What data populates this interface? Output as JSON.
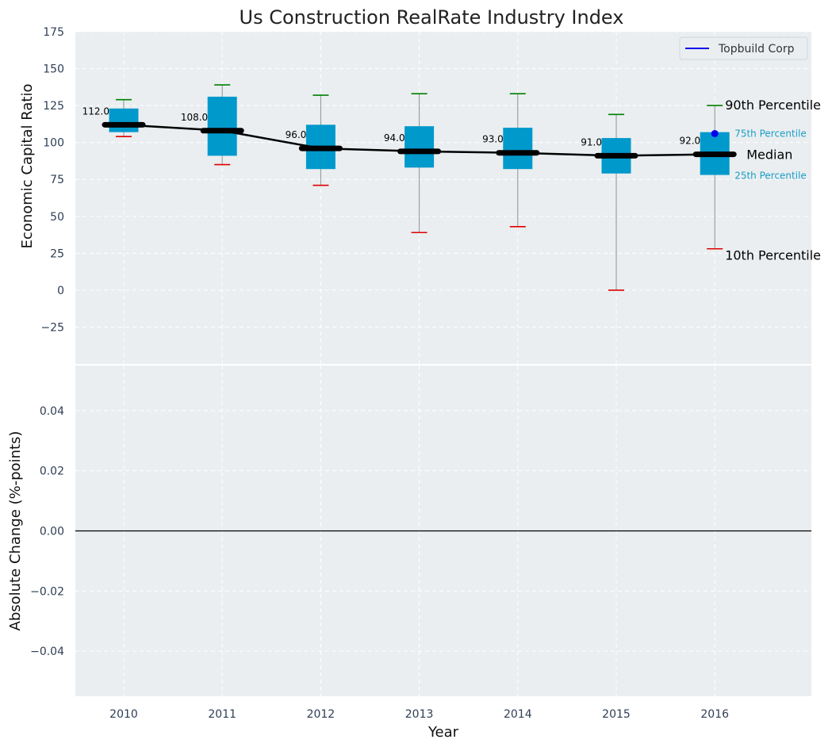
{
  "chart_data": [
    {
      "type": "box",
      "title": "Us Construction RealRate Industry Index",
      "ylabel": "Economic Capital Ratio",
      "ylim": [
        -50,
        175
      ],
      "yticks": [
        -25,
        0,
        25,
        50,
        75,
        100,
        125,
        150,
        175
      ],
      "categories": [
        "2010",
        "2011",
        "2012",
        "2013",
        "2014",
        "2015",
        "2016"
      ],
      "median": [
        112,
        108,
        96,
        94,
        93,
        91,
        92
      ],
      "median_labels": [
        "112.0",
        "108.0",
        "96.0",
        "94.0",
        "93.0",
        "91.0",
        "92.0"
      ],
      "q1": [
        107,
        91,
        82,
        83,
        82,
        79,
        78
      ],
      "q3": [
        123,
        131,
        112,
        111,
        110,
        103,
        107
      ],
      "p10": [
        104,
        85,
        71,
        39,
        43,
        0,
        28
      ],
      "p90": [
        129,
        139,
        132,
        133,
        133,
        119,
        125
      ],
      "series": [
        {
          "name": "Topbuild Corp",
          "values": [
            null,
            null,
            null,
            null,
            null,
            null,
            106
          ]
        }
      ],
      "annotations": {
        "p90": "90th Percentile",
        "q3": "75th Percentile",
        "median": "Median",
        "q1": "25th Percentile",
        "p10": "10th Percentile"
      },
      "legend": {
        "position": "top-right",
        "entries": [
          "Topbuild Corp"
        ]
      },
      "grid": true,
      "colors": {
        "box": "#0099cc",
        "median_line": "#000000",
        "p90_cap": "#008000",
        "p10_cap": "#e00000",
        "whisker": "#8c9196",
        "company": "#0000ee",
        "annotation_small": "#1b9ec6",
        "plot_bg": "#eaeef0"
      }
    },
    {
      "type": "line",
      "xlabel": "Year",
      "ylabel": "Absolute Change (%-points)",
      "ylim": [
        -0.055,
        0.055
      ],
      "yticks": [
        -0.04,
        -0.02,
        0.0,
        0.02,
        0.04
      ],
      "ytick_labels": [
        "−0.04",
        "−0.02",
        "0.00",
        "0.02",
        "0.04"
      ],
      "categories": [
        "2010",
        "2011",
        "2012",
        "2013",
        "2014",
        "2015",
        "2016"
      ],
      "reference_line": 0,
      "grid": true
    }
  ]
}
